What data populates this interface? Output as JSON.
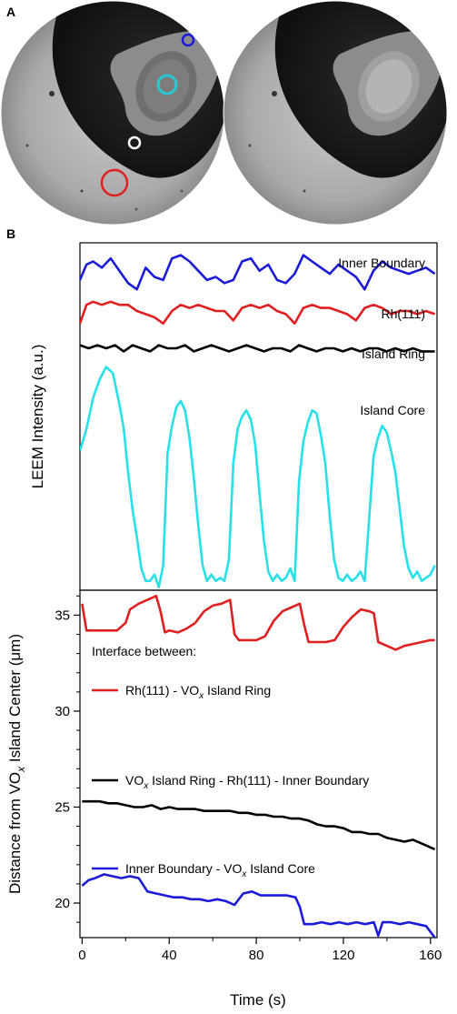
{
  "panel_a": {
    "letter": "A",
    "markers": [
      {
        "name": "inner-boundary-marker",
        "color": "#1b1bd8"
      },
      {
        "name": "island-core-marker",
        "color": "#27c9d4"
      },
      {
        "name": "island-ring-marker",
        "color": "#ffffff"
      },
      {
        "name": "rh111-marker",
        "color": "#e02020"
      }
    ]
  },
  "panel_b": {
    "letter": "B"
  },
  "chart_data": [
    {
      "type": "line",
      "ylabel": "LEEM Intensity (a.u.)",
      "xlim": [
        0,
        163
      ],
      "yticks_shown": false,
      "series": [
        {
          "name": "Inner Boundary",
          "color": "#1b1bd8",
          "x": [
            0,
            3,
            6,
            10,
            14,
            18,
            22,
            26,
            30,
            34,
            38,
            42,
            46,
            50,
            54,
            58,
            62,
            66,
            70,
            74,
            78,
            82,
            86,
            90,
            94,
            98,
            102,
            106,
            110,
            114,
            118,
            122,
            126,
            130,
            134,
            138,
            142,
            146,
            150,
            154,
            158,
            162
          ],
          "y": [
            8.4,
            8.9,
            9.0,
            8.8,
            9.1,
            8.7,
            8.3,
            8.1,
            8.8,
            8.5,
            8.4,
            9.1,
            9.2,
            9.0,
            8.7,
            8.4,
            8.5,
            8.3,
            8.4,
            9.0,
            9.1,
            8.7,
            8.9,
            8.4,
            8.3,
            8.6,
            9.2,
            9.0,
            8.8,
            8.6,
            8.9,
            8.7,
            8.5,
            8.1,
            8.7,
            9.0,
            8.8,
            8.7,
            8.6,
            8.7,
            8.8,
            8.6
          ]
        },
        {
          "name": "Rh(111)",
          "color": "#e02020",
          "x": [
            0,
            3,
            6,
            10,
            14,
            18,
            22,
            26,
            30,
            34,
            38,
            42,
            46,
            50,
            54,
            58,
            62,
            66,
            70,
            74,
            78,
            82,
            86,
            90,
            94,
            98,
            102,
            106,
            110,
            114,
            118,
            122,
            126,
            130,
            134,
            138,
            142,
            146,
            150,
            154,
            158,
            162
          ],
          "y": [
            7.0,
            7.6,
            7.7,
            7.6,
            7.7,
            7.6,
            7.6,
            7.4,
            7.3,
            7.2,
            7.0,
            7.4,
            7.6,
            7.5,
            7.6,
            7.5,
            7.4,
            7.4,
            7.1,
            7.5,
            7.6,
            7.5,
            7.6,
            7.4,
            7.3,
            7.0,
            7.5,
            7.6,
            7.5,
            7.5,
            7.4,
            7.3,
            7.1,
            7.5,
            7.6,
            7.5,
            7.3,
            7.4,
            7.4,
            7.3,
            7.4,
            7.3
          ]
        },
        {
          "name": "Island Ring",
          "color": "#000000",
          "x": [
            0,
            4,
            8,
            12,
            16,
            20,
            24,
            28,
            32,
            36,
            40,
            44,
            48,
            52,
            56,
            60,
            64,
            68,
            72,
            76,
            80,
            84,
            88,
            92,
            96,
            100,
            104,
            108,
            112,
            116,
            120,
            124,
            128,
            132,
            136,
            140,
            144,
            148,
            152,
            156,
            160,
            162
          ],
          "y": [
            6.3,
            6.2,
            6.3,
            6.2,
            6.3,
            6.1,
            6.3,
            6.2,
            6.1,
            6.3,
            6.2,
            6.2,
            6.3,
            6.1,
            6.2,
            6.3,
            6.2,
            6.1,
            6.2,
            6.3,
            6.2,
            6.1,
            6.2,
            6.2,
            6.1,
            6.3,
            6.2,
            6.1,
            6.2,
            6.2,
            6.1,
            6.2,
            6.1,
            6.2,
            6.2,
            6.1,
            6.2,
            6.1,
            6.2,
            6.1,
            6.1,
            6.1
          ]
        },
        {
          "name": "Island Core",
          "color": "#27e0e8",
          "x": [
            0,
            3,
            6,
            9,
            12,
            15,
            18,
            20,
            22,
            24,
            26,
            28,
            30,
            32,
            34,
            36,
            38,
            40,
            42,
            44,
            46,
            48,
            50,
            52,
            54,
            56,
            58,
            60,
            62,
            64,
            66,
            68,
            70,
            72,
            74,
            76,
            78,
            80,
            82,
            84,
            86,
            88,
            90,
            92,
            94,
            96,
            98,
            100,
            102,
            104,
            106,
            108,
            110,
            112,
            114,
            116,
            118,
            120,
            122,
            124,
            126,
            128,
            130,
            132,
            134,
            136,
            138,
            140,
            142,
            144,
            146,
            148,
            150,
            152,
            154,
            156,
            158,
            160,
            162
          ],
          "y": [
            2.9,
            3.6,
            4.6,
            5.2,
            5.6,
            5.4,
            4.4,
            3.6,
            2.2,
            1.0,
            0.1,
            -0.9,
            -1.3,
            -1.3,
            -1.1,
            -1.5,
            -0.8,
            2.8,
            3.7,
            4.3,
            4.5,
            4.2,
            3.3,
            2.0,
            0.5,
            -0.8,
            -1.3,
            -1.1,
            -1.3,
            -1.2,
            -1.3,
            -0.6,
            2.5,
            3.6,
            4.0,
            4.2,
            3.9,
            3.1,
            1.5,
            0.0,
            -1.0,
            -1.3,
            -1.1,
            -1.3,
            -1.2,
            -0.9,
            -1.3,
            1.9,
            3.2,
            3.8,
            4.2,
            4.1,
            3.4,
            2.5,
            0.8,
            -0.6,
            -1.2,
            -1.3,
            -1.1,
            -1.3,
            -1.2,
            -1.0,
            -1.3,
            0.7,
            2.7,
            3.3,
            3.7,
            3.5,
            2.9,
            2.2,
            1.0,
            -0.2,
            -0.9,
            -1.2,
            -1.0,
            -1.3,
            -1.2,
            -1.1,
            -0.8
          ]
        }
      ],
      "ylim": [
        -1.6,
        9.6
      ]
    },
    {
      "type": "line",
      "xlabel": "Time (s)",
      "ylabel_parts": [
        "Distance from VO",
        "x",
        " Island Center (μm)"
      ],
      "xlim": [
        -1,
        163
      ],
      "ylim": [
        18.2,
        36.3
      ],
      "xticks": [
        0,
        40,
        80,
        120,
        160
      ],
      "yticks": [
        20,
        25,
        30,
        35
      ],
      "legend_title": "Interface between:",
      "series": [
        {
          "name": "Rh(111) - VOx Island Ring",
          "label_parts": [
            "Rh(111) - VO",
            "x",
            " Island Ring"
          ],
          "color": "#e02020",
          "x": [
            0,
            2,
            4,
            8,
            12,
            16,
            20,
            22,
            26,
            30,
            34,
            36,
            38,
            40,
            44,
            48,
            52,
            56,
            60,
            64,
            68,
            70,
            72,
            76,
            80,
            84,
            88,
            92,
            96,
            100,
            102,
            104,
            108,
            112,
            116,
            120,
            124,
            128,
            132,
            134,
            136,
            140,
            144,
            148,
            152,
            156,
            160,
            162
          ],
          "y": [
            35.6,
            34.2,
            34.2,
            34.2,
            34.2,
            34.2,
            34.6,
            35.3,
            35.6,
            35.8,
            36.0,
            35.2,
            34.1,
            34.2,
            34.1,
            34.3,
            34.6,
            35.2,
            35.5,
            35.6,
            35.8,
            34.0,
            33.7,
            33.7,
            33.7,
            33.9,
            34.7,
            35.2,
            35.4,
            35.6,
            34.5,
            33.6,
            33.6,
            33.6,
            33.7,
            34.4,
            34.9,
            35.3,
            35.2,
            35.1,
            33.6,
            33.4,
            33.2,
            33.4,
            33.5,
            33.6,
            33.7,
            33.7
          ]
        },
        {
          "name": "VOx Island Ring - Rh(111) - Inner Boundary",
          "label_parts": [
            "VO",
            "x",
            " Island Ring - Rh(111) - Inner Boundary"
          ],
          "color": "#000000",
          "x": [
            0,
            4,
            8,
            12,
            16,
            20,
            24,
            28,
            32,
            36,
            40,
            44,
            48,
            52,
            56,
            60,
            64,
            68,
            72,
            76,
            80,
            84,
            88,
            92,
            96,
            100,
            104,
            108,
            112,
            116,
            120,
            124,
            128,
            132,
            136,
            140,
            144,
            148,
            152,
            156,
            160,
            162
          ],
          "y": [
            25.3,
            25.3,
            25.3,
            25.2,
            25.2,
            25.1,
            25.0,
            25.0,
            25.1,
            24.9,
            25.0,
            24.9,
            24.9,
            24.9,
            24.8,
            24.8,
            24.8,
            24.8,
            24.7,
            24.7,
            24.6,
            24.6,
            24.5,
            24.5,
            24.4,
            24.4,
            24.3,
            24.1,
            24.0,
            24.0,
            23.9,
            23.7,
            23.7,
            23.6,
            23.6,
            23.4,
            23.3,
            23.2,
            23.3,
            23.1,
            22.9,
            22.8
          ]
        },
        {
          "name": "Inner Boundary - VOx Island Core",
          "label_parts": [
            "Inner Boundary - VO",
            "x",
            " Island Core"
          ],
          "color": "#1b1bd8",
          "x": [
            0,
            3,
            6,
            10,
            14,
            18,
            22,
            26,
            30,
            34,
            38,
            42,
            46,
            50,
            54,
            58,
            62,
            66,
            70,
            74,
            78,
            82,
            86,
            90,
            94,
            98,
            100,
            102,
            106,
            110,
            114,
            118,
            122,
            126,
            130,
            134,
            136,
            138,
            142,
            146,
            150,
            154,
            158,
            162
          ],
          "y": [
            20.9,
            21.2,
            21.3,
            21.5,
            21.4,
            21.3,
            21.4,
            21.3,
            20.6,
            20.5,
            20.4,
            20.3,
            20.3,
            20.2,
            20.2,
            20.1,
            20.2,
            20.1,
            19.9,
            20.5,
            20.6,
            20.4,
            20.4,
            20.4,
            20.4,
            20.3,
            19.8,
            18.9,
            18.9,
            19.0,
            18.9,
            19.0,
            18.9,
            19.0,
            18.9,
            19.0,
            18.3,
            19.0,
            19.0,
            18.9,
            19.0,
            18.9,
            18.8,
            18.2
          ]
        }
      ]
    }
  ]
}
